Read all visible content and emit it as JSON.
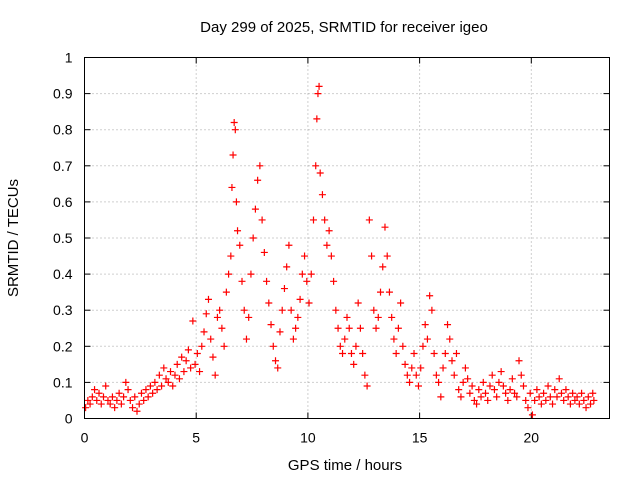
{
  "chart_data": {
    "type": "scatter",
    "title": "Day 299 of 2025, SRMTID for receiver igeo",
    "xlabel": "GPS time / hours",
    "ylabel": "SRMTID / TECUs",
    "xlim": [
      0,
      23.5
    ],
    "ylim": [
      0,
      1
    ],
    "xticks": [
      0,
      5,
      10,
      15,
      20
    ],
    "xtick_labels": [
      "0",
      "5",
      "10",
      "15",
      "20"
    ],
    "yticks": [
      0,
      0.1,
      0.2,
      0.3,
      0.4,
      0.5,
      0.6,
      0.7,
      0.8,
      0.9,
      1
    ],
    "ytick_labels": [
      "0",
      "0.1",
      "0.2",
      "0.3",
      "0.4",
      "0.5",
      "0.6",
      "0.7",
      "0.8",
      "0.9",
      "1"
    ],
    "grid": true,
    "marker": "+",
    "color": "#ff0000",
    "series": [
      {
        "name": "SRMTID",
        "points": [
          [
            0.05,
            0.03
          ],
          [
            0.15,
            0.05
          ],
          [
            0.25,
            0.04
          ],
          [
            0.35,
            0.06
          ],
          [
            0.45,
            0.08
          ],
          [
            0.55,
            0.05
          ],
          [
            0.65,
            0.07
          ],
          [
            0.75,
            0.04
          ],
          [
            0.85,
            0.06
          ],
          [
            0.95,
            0.09
          ],
          [
            1.05,
            0.05
          ],
          [
            1.15,
            0.04
          ],
          [
            1.25,
            0.06
          ],
          [
            1.35,
            0.03
          ],
          [
            1.45,
            0.05
          ],
          [
            1.55,
            0.07
          ],
          [
            1.65,
            0.04
          ],
          [
            1.75,
            0.06
          ],
          [
            1.85,
            0.1
          ],
          [
            1.95,
            0.08
          ],
          [
            2.05,
            0.05
          ],
          [
            2.15,
            0.03
          ],
          [
            2.25,
            0.06
          ],
          [
            2.35,
            0.02
          ],
          [
            2.45,
            0.04
          ],
          [
            2.55,
            0.07
          ],
          [
            2.65,
            0.05
          ],
          [
            2.75,
            0.08
          ],
          [
            2.85,
            0.06
          ],
          [
            2.95,
            0.09
          ],
          [
            3.05,
            0.07
          ],
          [
            3.15,
            0.1
          ],
          [
            3.25,
            0.08
          ],
          [
            3.35,
            0.12
          ],
          [
            3.45,
            0.09
          ],
          [
            3.55,
            0.14
          ],
          [
            3.65,
            0.11
          ],
          [
            3.75,
            0.1
          ],
          [
            3.85,
            0.13
          ],
          [
            3.95,
            0.09
          ],
          [
            4.05,
            0.12
          ],
          [
            4.15,
            0.15
          ],
          [
            4.25,
            0.11
          ],
          [
            4.35,
            0.17
          ],
          [
            4.45,
            0.13
          ],
          [
            4.55,
            0.16
          ],
          [
            4.65,
            0.19
          ],
          [
            4.75,
            0.14
          ],
          [
            4.85,
            0.27
          ],
          [
            4.95,
            0.15
          ],
          [
            5.05,
            0.18
          ],
          [
            5.15,
            0.13
          ],
          [
            5.25,
            0.2
          ],
          [
            5.35,
            0.24
          ],
          [
            5.45,
            0.29
          ],
          [
            5.55,
            0.33
          ],
          [
            5.65,
            0.22
          ],
          [
            5.75,
            0.17
          ],
          [
            5.85,
            0.12
          ],
          [
            5.95,
            0.28
          ],
          [
            6.05,
            0.3
          ],
          [
            6.15,
            0.25
          ],
          [
            6.25,
            0.2
          ],
          [
            6.35,
            0.35
          ],
          [
            6.45,
            0.4
          ],
          [
            6.55,
            0.45
          ],
          [
            6.6,
            0.64
          ],
          [
            6.65,
            0.73
          ],
          [
            6.7,
            0.82
          ],
          [
            6.75,
            0.8
          ],
          [
            6.8,
            0.6
          ],
          [
            6.85,
            0.52
          ],
          [
            6.95,
            0.48
          ],
          [
            7.05,
            0.38
          ],
          [
            7.15,
            0.3
          ],
          [
            7.25,
            0.22
          ],
          [
            7.35,
            0.28
          ],
          [
            7.45,
            0.4
          ],
          [
            7.55,
            0.5
          ],
          [
            7.65,
            0.58
          ],
          [
            7.75,
            0.66
          ],
          [
            7.85,
            0.7
          ],
          [
            7.95,
            0.55
          ],
          [
            8.05,
            0.46
          ],
          [
            8.15,
            0.38
          ],
          [
            8.25,
            0.32
          ],
          [
            8.35,
            0.26
          ],
          [
            8.45,
            0.2
          ],
          [
            8.55,
            0.16
          ],
          [
            8.65,
            0.14
          ],
          [
            8.75,
            0.24
          ],
          [
            8.85,
            0.3
          ],
          [
            8.95,
            0.36
          ],
          [
            9.05,
            0.42
          ],
          [
            9.15,
            0.48
          ],
          [
            9.25,
            0.3
          ],
          [
            9.35,
            0.22
          ],
          [
            9.45,
            0.25
          ],
          [
            9.55,
            0.28
          ],
          [
            9.65,
            0.33
          ],
          [
            9.75,
            0.4
          ],
          [
            9.85,
            0.45
          ],
          [
            9.95,
            0.38
          ],
          [
            10.05,
            0.32
          ],
          [
            10.15,
            0.4
          ],
          [
            10.25,
            0.55
          ],
          [
            10.35,
            0.7
          ],
          [
            10.4,
            0.83
          ],
          [
            10.45,
            0.9
          ],
          [
            10.5,
            0.92
          ],
          [
            10.55,
            0.68
          ],
          [
            10.65,
            0.62
          ],
          [
            10.75,
            0.55
          ],
          [
            10.85,
            0.48
          ],
          [
            10.95,
            0.52
          ],
          [
            11.05,
            0.45
          ],
          [
            11.15,
            0.38
          ],
          [
            11.25,
            0.3
          ],
          [
            11.35,
            0.25
          ],
          [
            11.45,
            0.2
          ],
          [
            11.55,
            0.18
          ],
          [
            11.65,
            0.22
          ],
          [
            11.75,
            0.28
          ],
          [
            11.85,
            0.25
          ],
          [
            11.95,
            0.18
          ],
          [
            12.05,
            0.15
          ],
          [
            12.15,
            0.2
          ],
          [
            12.25,
            0.32
          ],
          [
            12.35,
            0.25
          ],
          [
            12.45,
            0.18
          ],
          [
            12.55,
            0.12
          ],
          [
            12.65,
            0.09
          ],
          [
            12.75,
            0.55
          ],
          [
            12.85,
            0.45
          ],
          [
            12.95,
            0.3
          ],
          [
            13.05,
            0.25
          ],
          [
            13.15,
            0.28
          ],
          [
            13.25,
            0.35
          ],
          [
            13.35,
            0.42
          ],
          [
            13.45,
            0.53
          ],
          [
            13.55,
            0.45
          ],
          [
            13.65,
            0.35
          ],
          [
            13.75,
            0.28
          ],
          [
            13.85,
            0.22
          ],
          [
            13.95,
            0.18
          ],
          [
            14.05,
            0.25
          ],
          [
            14.15,
            0.32
          ],
          [
            14.25,
            0.2
          ],
          [
            14.35,
            0.15
          ],
          [
            14.45,
            0.12
          ],
          [
            14.55,
            0.1
          ],
          [
            14.65,
            0.14
          ],
          [
            14.75,
            0.18
          ],
          [
            14.85,
            0.12
          ],
          [
            14.95,
            0.09
          ],
          [
            15.05,
            0.14
          ],
          [
            15.15,
            0.2
          ],
          [
            15.25,
            0.26
          ],
          [
            15.35,
            0.22
          ],
          [
            15.45,
            0.34
          ],
          [
            15.55,
            0.3
          ],
          [
            15.65,
            0.18
          ],
          [
            15.75,
            0.12
          ],
          [
            15.85,
            0.1
          ],
          [
            15.95,
            0.06
          ],
          [
            16.05,
            0.14
          ],
          [
            16.15,
            0.18
          ],
          [
            16.25,
            0.26
          ],
          [
            16.35,
            0.22
          ],
          [
            16.45,
            0.16
          ],
          [
            16.55,
            0.12
          ],
          [
            16.65,
            0.18
          ],
          [
            16.75,
            0.08
          ],
          [
            16.85,
            0.06
          ],
          [
            16.95,
            0.1
          ],
          [
            17.05,
            0.14
          ],
          [
            17.15,
            0.11
          ],
          [
            17.25,
            0.07
          ],
          [
            17.35,
            0.09
          ],
          [
            17.45,
            0.05
          ],
          [
            17.55,
            0.04
          ],
          [
            17.65,
            0.08
          ],
          [
            17.75,
            0.06
          ],
          [
            17.85,
            0.1
          ],
          [
            17.95,
            0.07
          ],
          [
            18.05,
            0.05
          ],
          [
            18.15,
            0.09
          ],
          [
            18.25,
            0.12
          ],
          [
            18.35,
            0.08
          ],
          [
            18.45,
            0.06
          ],
          [
            18.55,
            0.1
          ],
          [
            18.65,
            0.13
          ],
          [
            18.75,
            0.09
          ],
          [
            18.85,
            0.07
          ],
          [
            18.95,
            0.05
          ],
          [
            19.05,
            0.08
          ],
          [
            19.15,
            0.11
          ],
          [
            19.25,
            0.07
          ],
          [
            19.35,
            0.06
          ],
          [
            19.45,
            0.16
          ],
          [
            19.55,
            0.12
          ],
          [
            19.65,
            0.09
          ],
          [
            19.75,
            0.05
          ],
          [
            19.85,
            0.03
          ],
          [
            19.95,
            0.07
          ],
          [
            20.05,
            0.01
          ],
          [
            20.15,
            0.05
          ],
          [
            20.25,
            0.08
          ],
          [
            20.35,
            0.06
          ],
          [
            20.45,
            0.04
          ],
          [
            20.55,
            0.07
          ],
          [
            20.65,
            0.05
          ],
          [
            20.75,
            0.09
          ],
          [
            20.85,
            0.06
          ],
          [
            20.95,
            0.04
          ],
          [
            21.05,
            0.08
          ],
          [
            21.15,
            0.06
          ],
          [
            21.25,
            0.11
          ],
          [
            21.35,
            0.07
          ],
          [
            21.45,
            0.05
          ],
          [
            21.55,
            0.08
          ],
          [
            21.65,
            0.06
          ],
          [
            21.75,
            0.04
          ],
          [
            21.85,
            0.07
          ],
          [
            21.95,
            0.05
          ],
          [
            22.05,
            0.06
          ],
          [
            22.15,
            0.04
          ],
          [
            22.25,
            0.07
          ],
          [
            22.35,
            0.05
          ],
          [
            22.45,
            0.03
          ],
          [
            22.55,
            0.06
          ],
          [
            22.65,
            0.04
          ],
          [
            22.75,
            0.07
          ],
          [
            22.8,
            0.05
          ]
        ]
      }
    ]
  }
}
